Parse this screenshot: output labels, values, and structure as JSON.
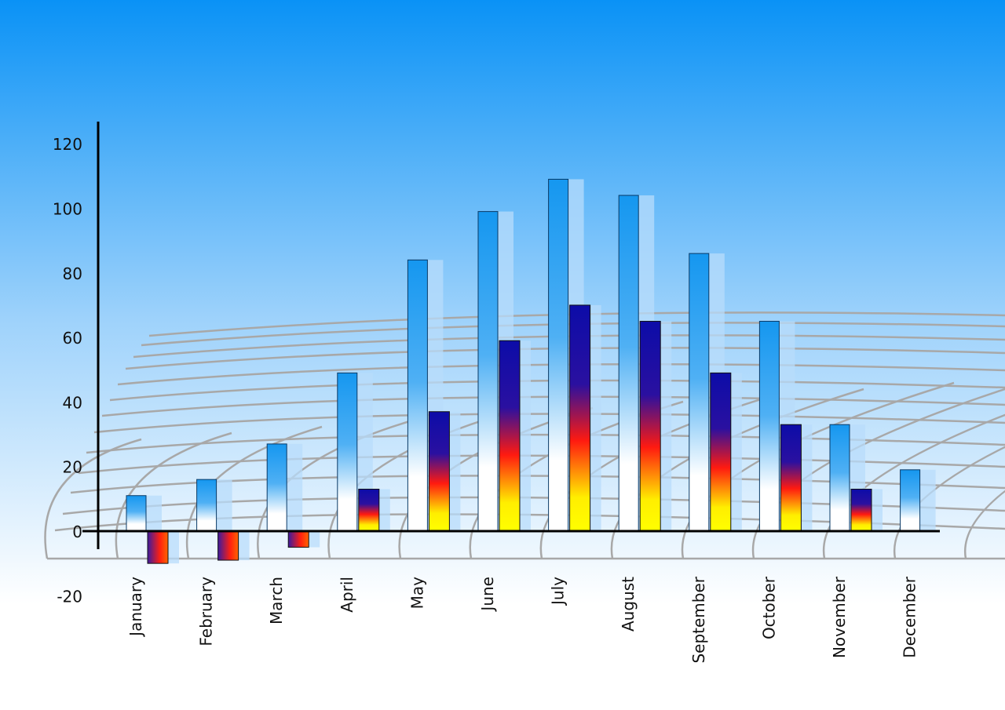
{
  "chart_data": {
    "type": "bar",
    "title": "",
    "xlabel": "",
    "ylabel": "",
    "ylim": [
      -20,
      120
    ],
    "yticks": [
      "120",
      "100",
      "80",
      "60",
      "40",
      "20",
      "0",
      "-20"
    ],
    "categories": [
      "January",
      "February",
      "March",
      "April",
      "May",
      "June",
      "July",
      "August",
      "September",
      "October",
      "November",
      "December"
    ],
    "series": [
      {
        "values": [
          11,
          16,
          27,
          49,
          84,
          99,
          109,
          104,
          86,
          65,
          33,
          19
        ],
        "color": "#1a9af0"
      },
      {
        "values": [
          -10,
          -9,
          -5,
          13,
          37,
          59,
          70,
          65,
          49,
          33,
          13,
          null
        ],
        "color": "#1010a0"
      }
    ],
    "grid": true,
    "legend": "none",
    "colors": {
      "bg_top": "#0a8ff5",
      "bg_bottom": "#ffffff",
      "grid": "#a8a8a8",
      "axis": "#000000"
    }
  }
}
